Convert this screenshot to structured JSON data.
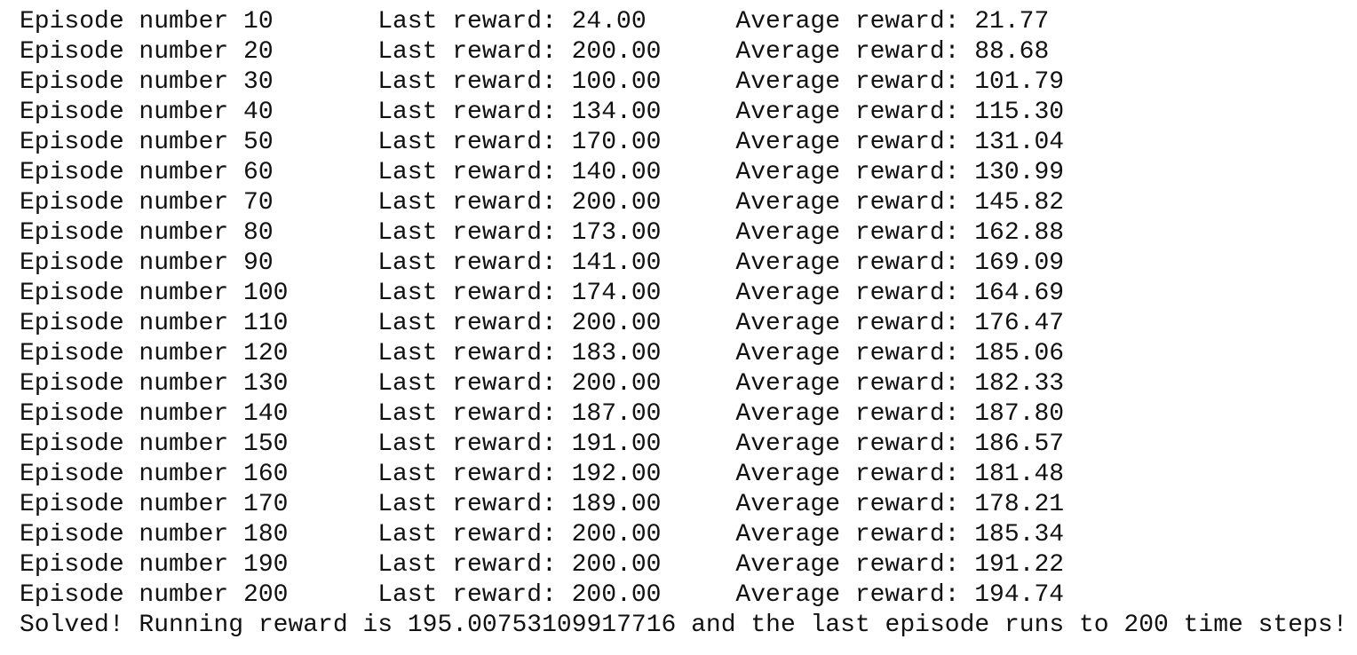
{
  "rows": [
    {
      "episode": "Episode number 10",
      "last": "Last reward: 24.00",
      "average": "Average reward: 21.77"
    },
    {
      "episode": "Episode number 20",
      "last": "Last reward: 200.00",
      "average": "Average reward: 88.68"
    },
    {
      "episode": "Episode number 30",
      "last": "Last reward: 100.00",
      "average": "Average reward: 101.79"
    },
    {
      "episode": "Episode number 40",
      "last": "Last reward: 134.00",
      "average": "Average reward: 115.30"
    },
    {
      "episode": "Episode number 50",
      "last": "Last reward: 170.00",
      "average": "Average reward: 131.04"
    },
    {
      "episode": "Episode number 60",
      "last": "Last reward: 140.00",
      "average": "Average reward: 130.99"
    },
    {
      "episode": "Episode number 70",
      "last": "Last reward: 200.00",
      "average": "Average reward: 145.82"
    },
    {
      "episode": "Episode number 80",
      "last": "Last reward: 173.00",
      "average": "Average reward: 162.88"
    },
    {
      "episode": "Episode number 90",
      "last": "Last reward: 141.00",
      "average": "Average reward: 169.09"
    },
    {
      "episode": "Episode number 100",
      "last": "Last reward: 174.00",
      "average": "Average reward: 164.69"
    },
    {
      "episode": "Episode number 110",
      "last": "Last reward: 200.00",
      "average": "Average reward: 176.47"
    },
    {
      "episode": "Episode number 120",
      "last": "Last reward: 183.00",
      "average": "Average reward: 185.06"
    },
    {
      "episode": "Episode number 130",
      "last": "Last reward: 200.00",
      "average": "Average reward: 182.33"
    },
    {
      "episode": "Episode number 140",
      "last": "Last reward: 187.00",
      "average": "Average reward: 187.80"
    },
    {
      "episode": "Episode number 150",
      "last": "Last reward: 191.00",
      "average": "Average reward: 186.57"
    },
    {
      "episode": "Episode number 160",
      "last": "Last reward: 192.00",
      "average": "Average reward: 181.48"
    },
    {
      "episode": "Episode number 170",
      "last": "Last reward: 189.00",
      "average": "Average reward: 178.21"
    },
    {
      "episode": "Episode number 180",
      "last": "Last reward: 200.00",
      "average": "Average reward: 185.34"
    },
    {
      "episode": "Episode number 190",
      "last": "Last reward: 200.00",
      "average": "Average reward: 191.22"
    },
    {
      "episode": "Episode number 200",
      "last": "Last reward: 200.00",
      "average": "Average reward: 194.74"
    }
  ],
  "footer": "Solved! Running reward is 195.00753109917716 and the last episode runs to 200 time steps!"
}
